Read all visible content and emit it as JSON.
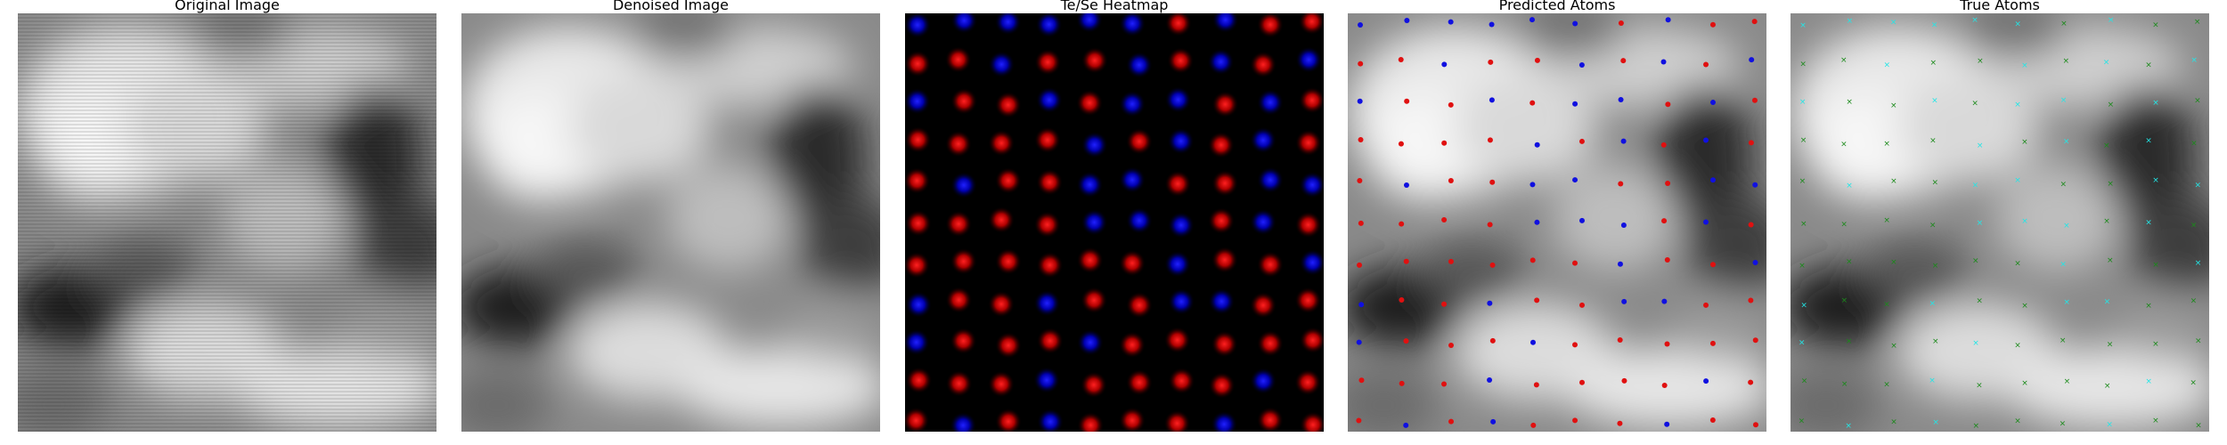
{
  "figure": {
    "panels": [
      {
        "id": "original",
        "title": "Original Image"
      },
      {
        "id": "denoised",
        "title": "Denoised Image"
      },
      {
        "id": "heatmap",
        "title": "Te/Se Heatmap"
      },
      {
        "id": "predicted",
        "title": "Predicted Atoms"
      },
      {
        "id": "true",
        "title": "True Atoms"
      }
    ],
    "colors": {
      "te": "#e01010",
      "se": "#1010e0",
      "true_a": "#1a8a1a",
      "true_b": "#22e6e6",
      "heat_bg": "#000000"
    }
  }
}
